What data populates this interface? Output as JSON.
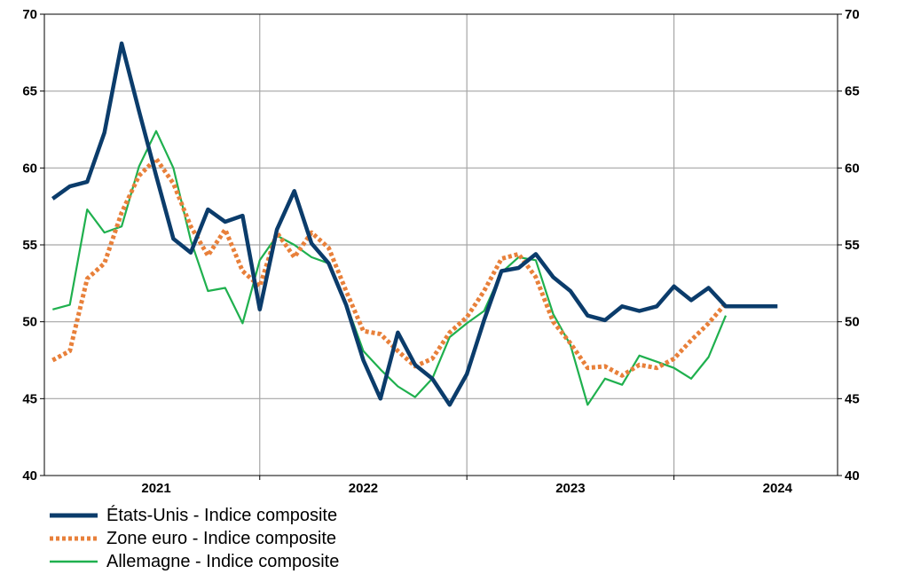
{
  "chart_data": {
    "type": "line",
    "title": "",
    "xlabel": "",
    "ylabel": "",
    "ylim": [
      40,
      70
    ],
    "yticks": [
      40,
      45,
      50,
      55,
      60,
      65,
      70
    ],
    "xticks": [
      {
        "label": "2021",
        "x": 2021.0
      },
      {
        "label": "2022",
        "x": 2022.0
      },
      {
        "label": "2023",
        "x": 2023.0
      },
      {
        "label": "2024",
        "x": 2024.0
      }
    ],
    "xlim": [
      2020.46,
      2024.29
    ],
    "grid": true,
    "legend_position": "bottom-left",
    "series": [
      {
        "name": "États-Unis - Indice composite",
        "color": "#0B3C6B",
        "style": "solid-thick",
        "x": [
          2020.5,
          2020.583,
          2020.667,
          2020.75,
          2020.833,
          2020.917,
          2021.0,
          2021.083,
          2021.167,
          2021.25,
          2021.333,
          2021.417,
          2021.5,
          2021.583,
          2021.667,
          2021.75,
          2021.833,
          2021.917,
          2022.0,
          2022.083,
          2022.167,
          2022.25,
          2022.333,
          2022.417,
          2022.5,
          2022.583,
          2022.667,
          2022.75,
          2022.833,
          2022.917,
          2023.0,
          2023.083,
          2023.167,
          2023.25,
          2023.333,
          2023.417,
          2023.5,
          2023.583,
          2023.667,
          2023.75,
          2023.833,
          2023.917,
          2024.0
        ],
        "values": [
          58.0,
          58.8,
          59.1,
          62.3,
          68.1,
          63.7,
          59.5,
          55.4,
          54.5,
          57.3,
          56.5,
          56.9,
          50.8,
          56.0,
          58.5,
          55.1,
          53.8,
          51.1,
          47.5,
          45.0,
          49.3,
          47.2,
          46.3,
          44.6,
          46.6,
          50.1,
          53.3,
          53.5,
          54.4,
          52.9,
          52.0,
          50.4,
          50.1,
          51.0,
          50.7,
          51.0,
          52.3,
          51.4,
          52.2,
          51.0,
          51.0,
          51.0,
          51.0
        ]
      },
      {
        "name": "Zone euro - Indice composite",
        "color": "#E8803A",
        "style": "dotted",
        "x": [
          2020.5,
          2020.583,
          2020.667,
          2020.75,
          2020.833,
          2020.917,
          2021.0,
          2021.083,
          2021.167,
          2021.25,
          2021.333,
          2021.417,
          2021.5,
          2021.583,
          2021.667,
          2021.75,
          2021.833,
          2021.917,
          2022.0,
          2022.083,
          2022.167,
          2022.25,
          2022.333,
          2022.417,
          2022.5,
          2022.583,
          2022.667,
          2022.75,
          2022.833,
          2022.917,
          2023.0,
          2023.083,
          2023.167,
          2023.25,
          2023.333,
          2023.417,
          2023.5,
          2023.583,
          2023.667,
          2023.75
        ],
        "values": [
          47.5,
          48.1,
          52.8,
          53.8,
          57.1,
          59.5,
          60.6,
          59.0,
          56.2,
          54.3,
          56.0,
          53.3,
          52.3,
          55.8,
          54.2,
          55.8,
          54.8,
          52.0,
          49.4,
          49.2,
          48.1,
          47.1,
          47.6,
          49.3,
          50.3,
          52.0,
          54.1,
          54.4,
          52.9,
          50.0,
          48.6,
          47.0,
          47.1,
          46.5,
          47.2,
          47.0,
          47.6,
          48.8,
          49.9,
          51.2
        ]
      },
      {
        "name": "Allemagne - Indice composite",
        "color": "#1FB04E",
        "style": "solid-thin",
        "x": [
          2020.5,
          2020.583,
          2020.667,
          2020.75,
          2020.833,
          2020.917,
          2021.0,
          2021.083,
          2021.167,
          2021.25,
          2021.333,
          2021.417,
          2021.5,
          2021.583,
          2021.667,
          2021.75,
          2021.833,
          2021.917,
          2022.0,
          2022.083,
          2022.167,
          2022.25,
          2022.333,
          2022.417,
          2022.5,
          2022.583,
          2022.667,
          2022.75,
          2022.833,
          2022.917,
          2023.0,
          2023.083,
          2023.167,
          2023.25,
          2023.333,
          2023.417,
          2023.5,
          2023.583,
          2023.667,
          2023.75
        ],
        "values": [
          50.8,
          51.1,
          57.3,
          55.8,
          56.2,
          60.1,
          62.4,
          60.0,
          55.3,
          52.0,
          52.2,
          49.9,
          54.0,
          55.6,
          55.0,
          54.2,
          53.8,
          51.2,
          48.1,
          46.9,
          45.8,
          45.1,
          46.3,
          49.0,
          49.9,
          50.7,
          53.2,
          54.2,
          54.0,
          50.5,
          48.5,
          44.6,
          46.3,
          45.9,
          47.8,
          47.4,
          47.0,
          46.3,
          47.7,
          50.4
        ]
      }
    ]
  }
}
